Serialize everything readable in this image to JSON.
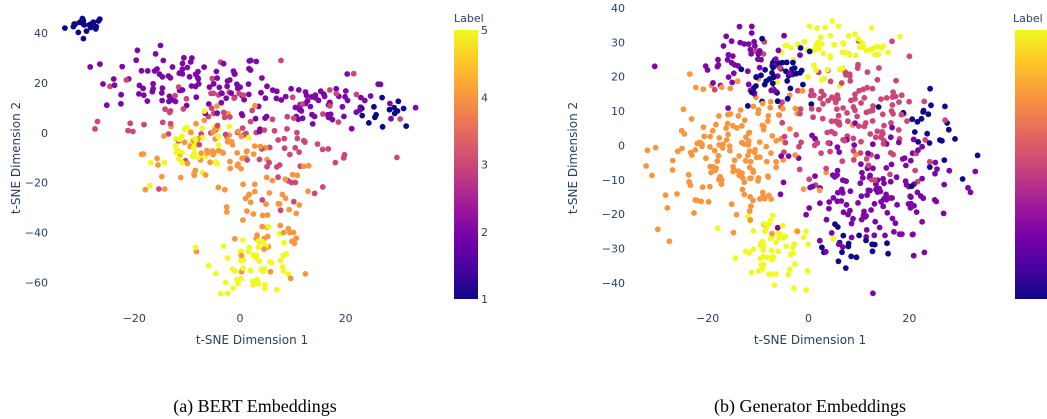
{
  "figure": {
    "captions": [
      "(a) BERT Embeddings",
      "(b) Generator Embeddings"
    ]
  },
  "colorscale": [
    "#0d0887",
    "#46039f",
    "#7201a8",
    "#9c179e",
    "#bd3786",
    "#d8576b",
    "#ed7953",
    "#fb9f3a",
    "#fdca26",
    "#f0f921"
  ],
  "chart_data": [
    {
      "type": "scatter",
      "title": "",
      "xlabel": "t-SNE Dimension 1",
      "ylabel": "t-SNE Dimension 2",
      "xlim": [
        -35,
        35
      ],
      "ylim": [
        -67,
        50
      ],
      "xticks": [
        -20,
        0,
        20
      ],
      "yticks": [
        40,
        20,
        0,
        -20,
        -40,
        -60
      ],
      "grid": false,
      "colorbar": {
        "title": "Label",
        "range": [
          1,
          5
        ],
        "ticks": [
          1,
          2,
          3,
          4,
          5
        ]
      },
      "clusters": [
        {
          "label": 1,
          "cx": -29,
          "cy": 43,
          "sx": 2,
          "sy": 2,
          "n": 20
        },
        {
          "label": 1,
          "cx": 28,
          "cy": 8,
          "sx": 3,
          "sy": 3,
          "n": 15
        },
        {
          "label": 2,
          "cx": -10,
          "cy": 20,
          "sx": 8,
          "sy": 6,
          "n": 90
        },
        {
          "label": 2,
          "cx": 13,
          "cy": 12,
          "sx": 9,
          "sy": 5,
          "n": 70
        },
        {
          "label": 3,
          "cx": -3,
          "cy": 8,
          "sx": 12,
          "sy": 9,
          "n": 70
        },
        {
          "label": 3,
          "cx": 10,
          "cy": -10,
          "sx": 6,
          "sy": 8,
          "n": 35
        },
        {
          "label": 4,
          "cx": -6,
          "cy": -8,
          "sx": 6,
          "sy": 8,
          "n": 60
        },
        {
          "label": 4,
          "cx": 5,
          "cy": -35,
          "sx": 5,
          "sy": 14,
          "n": 60
        },
        {
          "label": 5,
          "cx": -8,
          "cy": -6,
          "sx": 4,
          "sy": 6,
          "n": 40
        },
        {
          "label": 5,
          "cx": 3,
          "cy": -52,
          "sx": 4,
          "sy": 6,
          "n": 55
        }
      ]
    },
    {
      "type": "scatter",
      "title": "",
      "xlabel": "t-SNE Dimension 1",
      "ylabel": "t-SNE Dimension 2",
      "xlim": [
        -35,
        35
      ],
      "ylim": [
        -45,
        40
      ],
      "xticks": [
        -20,
        0,
        20
      ],
      "yticks": [
        40,
        30,
        20,
        10,
        0,
        -10,
        -20,
        -30,
        -40
      ],
      "grid": false,
      "colorbar": {
        "title": "Label",
        "range": [
          1,
          5
        ],
        "ticks": [
          1,
          2,
          3,
          4,
          5
        ]
      },
      "clusters": [
        {
          "label": 1,
          "cx": -6,
          "cy": 20,
          "sx": 3.5,
          "sy": 4,
          "n": 50
        },
        {
          "label": 1,
          "cx": 25,
          "cy": 5,
          "sx": 4,
          "sy": 5,
          "n": 25
        },
        {
          "label": 1,
          "cx": 10,
          "cy": -30,
          "sx": 5,
          "sy": 3,
          "n": 20
        },
        {
          "label": 2,
          "cx": -14,
          "cy": 25,
          "sx": 6,
          "sy": 5,
          "n": 50
        },
        {
          "label": 2,
          "cx": 14,
          "cy": -14,
          "sx": 8,
          "sy": 9,
          "n": 150
        },
        {
          "label": 3,
          "cx": 8,
          "cy": 8,
          "sx": 8,
          "sy": 9,
          "n": 150
        },
        {
          "label": 4,
          "cx": -14,
          "cy": -2,
          "sx": 7,
          "sy": 11,
          "n": 170
        },
        {
          "label": 5,
          "cx": 5,
          "cy": 28,
          "sx": 6,
          "sy": 4,
          "n": 60
        },
        {
          "label": 5,
          "cx": -7,
          "cy": -30,
          "sx": 3.5,
          "sy": 5,
          "n": 60
        }
      ]
    }
  ]
}
